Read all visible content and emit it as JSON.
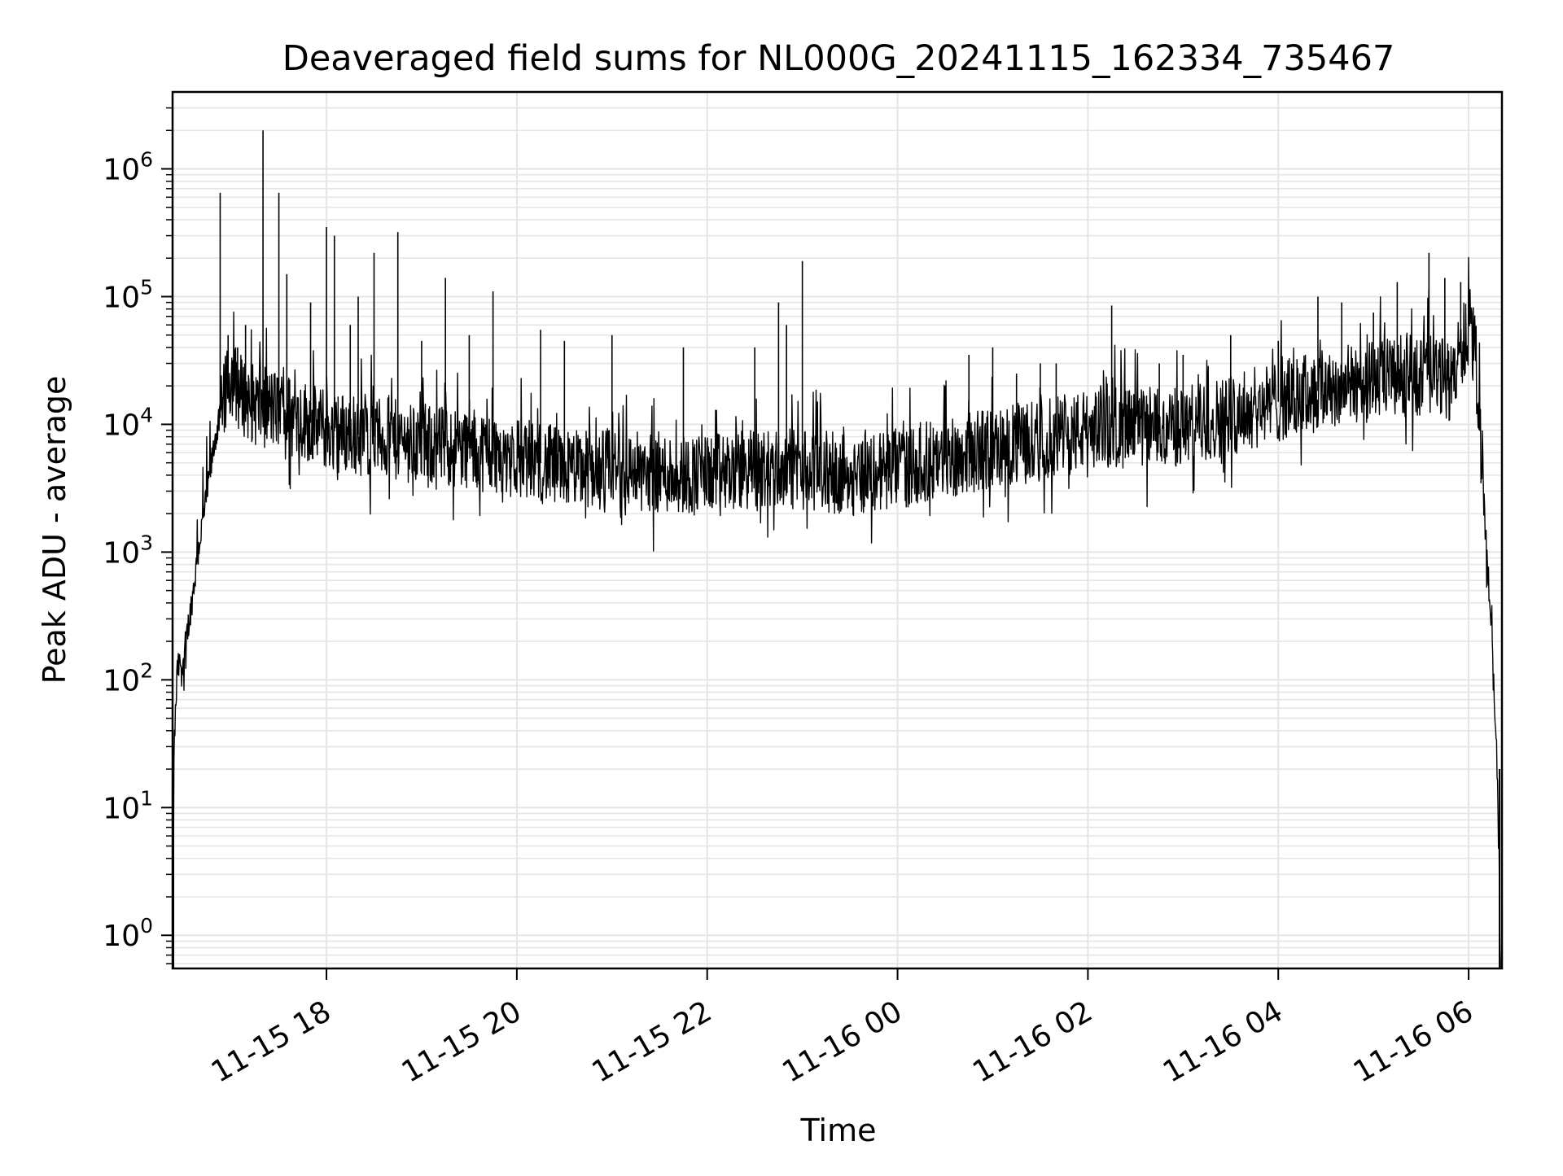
{
  "chart_data": {
    "type": "line",
    "title": "Deaveraged field sums for NL000G_20241115_162334_735467",
    "xlabel": "Time",
    "ylabel": "Peak ADU - average",
    "yscale": "log",
    "grid": true,
    "line_color": "#000000",
    "grid_color": "#e5e5e5",
    "xlim": [
      "2024-11-15 16:23",
      "2024-11-16 06:21"
    ],
    "ylim": [
      0.55,
      4000000
    ],
    "x_ticks": [
      {
        "label": "11-15 18",
        "value": "2024-11-15 18:00"
      },
      {
        "label": "11-15 20",
        "value": "2024-11-15 20:00"
      },
      {
        "label": "11-15 22",
        "value": "2024-11-15 22:00"
      },
      {
        "label": "11-16 00",
        "value": "2024-11-16 00:00"
      },
      {
        "label": "11-16 02",
        "value": "2024-11-16 02:00"
      },
      {
        "label": "11-16 04",
        "value": "2024-11-16 04:00"
      },
      {
        "label": "11-16 06",
        "value": "2024-11-16 06:00"
      }
    ],
    "y_ticks": [
      {
        "base": "10",
        "exp": "0",
        "value": 1
      },
      {
        "base": "10",
        "exp": "1",
        "value": 10
      },
      {
        "base": "10",
        "exp": "2",
        "value": 100
      },
      {
        "base": "10",
        "exp": "3",
        "value": 1000
      },
      {
        "base": "10",
        "exp": "4",
        "value": 10000
      },
      {
        "base": "10",
        "exp": "5",
        "value": 100000
      },
      {
        "base": "10",
        "exp": "6",
        "value": 1000000
      }
    ],
    "series": [
      {
        "points": [
          [
            "2024-11-15 16:23",
            0.6
          ],
          [
            "2024-11-15 16:24",
            30
          ],
          [
            "2024-11-15 16:26",
            120
          ],
          [
            "2024-11-15 16:30",
            150
          ],
          [
            "2024-11-15 16:35",
            400
          ],
          [
            "2024-11-15 16:40",
            1200
          ],
          [
            "2024-11-15 16:45",
            3000
          ],
          [
            "2024-11-15 16:50",
            8000
          ],
          [
            "2024-11-15 16:55",
            14000
          ],
          [
            "2024-11-15 17:00",
            25000
          ],
          [
            "2024-11-15 17:05",
            18000
          ],
          [
            "2024-11-15 17:15",
            14000
          ],
          [
            "2024-11-15 17:30",
            13000
          ],
          [
            "2024-11-15 17:45",
            11000
          ],
          [
            "2024-11-15 18:00",
            9000
          ],
          [
            "2024-11-15 18:30",
            8000
          ],
          [
            "2024-11-15 19:00",
            7000
          ],
          [
            "2024-11-15 19:30",
            6500
          ],
          [
            "2024-11-15 20:00",
            5500
          ],
          [
            "2024-11-15 20:30",
            4500
          ],
          [
            "2024-11-15 21:00",
            4500
          ],
          [
            "2024-11-15 21:30",
            4200
          ],
          [
            "2024-11-15 22:00",
            4000
          ],
          [
            "2024-11-15 22:30",
            4500
          ],
          [
            "2024-11-15 23:00",
            4500
          ],
          [
            "2024-11-15 23:30",
            4000
          ],
          [
            "2024-11-16 00:00",
            4500
          ],
          [
            "2024-11-16 00:30",
            5500
          ],
          [
            "2024-11-16 01:00",
            6500
          ],
          [
            "2024-11-16 01:30",
            7500
          ],
          [
            "2024-11-16 02:00",
            9000
          ],
          [
            "2024-11-16 02:10",
            10000
          ],
          [
            "2024-11-16 02:30",
            9000
          ],
          [
            "2024-11-16 03:00",
            9500
          ],
          [
            "2024-11-16 03:30",
            12000
          ],
          [
            "2024-11-16 04:00",
            15000
          ],
          [
            "2024-11-16 04:30",
            19000
          ],
          [
            "2024-11-16 05:00",
            22000
          ],
          [
            "2024-11-16 05:30",
            25000
          ],
          [
            "2024-11-16 05:50",
            22000
          ],
          [
            "2024-11-16 06:00",
            60000
          ],
          [
            "2024-11-16 06:05",
            30000
          ],
          [
            "2024-11-16 06:10",
            2000
          ],
          [
            "2024-11-16 06:14",
            300
          ],
          [
            "2024-11-16 06:18",
            20
          ],
          [
            "2024-11-16 06:20",
            0.6
          ]
        ],
        "spikes": [
          [
            "2024-11-15 16:53",
            650000
          ],
          [
            "2024-11-15 16:58",
            50000
          ],
          [
            "2024-11-15 17:04",
            40000
          ],
          [
            "2024-11-15 17:09",
            60000
          ],
          [
            "2024-11-15 17:20",
            2000000
          ],
          [
            "2024-11-15 17:30",
            650000
          ],
          [
            "2024-11-15 17:35",
            150000
          ],
          [
            "2024-11-15 17:50",
            90000
          ],
          [
            "2024-11-15 18:00",
            350000
          ],
          [
            "2024-11-15 18:05",
            300000
          ],
          [
            "2024-11-15 18:15",
            60000
          ],
          [
            "2024-11-15 18:20",
            100000
          ],
          [
            "2024-11-15 18:30",
            220000
          ],
          [
            "2024-11-15 18:45",
            320000
          ],
          [
            "2024-11-15 19:00",
            45000
          ],
          [
            "2024-11-15 19:15",
            140000
          ],
          [
            "2024-11-15 19:30",
            50000
          ],
          [
            "2024-11-15 19:45",
            110000
          ],
          [
            "2024-11-15 20:15",
            55000
          ],
          [
            "2024-11-15 20:30",
            45000
          ],
          [
            "2024-11-15 21:00",
            50000
          ],
          [
            "2024-11-15 21:45",
            40000
          ],
          [
            "2024-11-15 22:30",
            40000
          ],
          [
            "2024-11-15 22:45",
            90000
          ],
          [
            "2024-11-15 22:50",
            60000
          ],
          [
            "2024-11-15 23:00",
            190000
          ],
          [
            "2024-11-16 00:30",
            20000
          ],
          [
            "2024-11-16 00:45",
            35000
          ],
          [
            "2024-11-16 01:00",
            40000
          ],
          [
            "2024-11-16 01:15",
            25000
          ],
          [
            "2024-11-16 01:30",
            30000
          ],
          [
            "2024-11-16 01:40",
            30000
          ],
          [
            "2024-11-16 02:15",
            85000
          ],
          [
            "2024-11-16 02:45",
            30000
          ],
          [
            "2024-11-16 03:00",
            35000
          ],
          [
            "2024-11-16 03:30",
            50000
          ],
          [
            "2024-11-16 04:00",
            45000
          ],
          [
            "2024-11-16 04:25",
            100000
          ],
          [
            "2024-11-16 04:40",
            90000
          ],
          [
            "2024-11-16 05:00",
            75000
          ],
          [
            "2024-11-16 05:15",
            130000
          ],
          [
            "2024-11-16 05:35",
            220000
          ],
          [
            "2024-11-16 05:45",
            140000
          ],
          [
            "2024-11-16 05:55",
            130000
          ]
        ]
      }
    ]
  }
}
